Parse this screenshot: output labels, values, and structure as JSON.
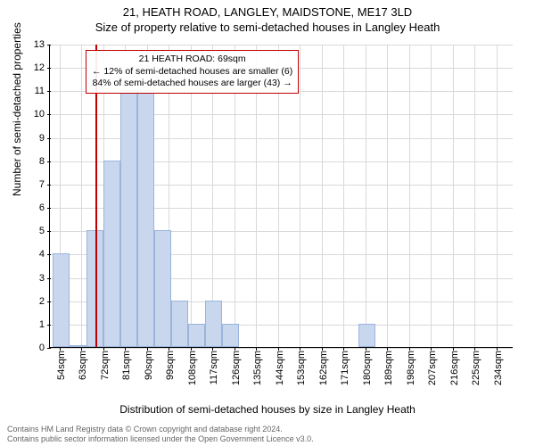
{
  "title": {
    "main": "21, HEATH ROAD, LANGLEY, MAIDSTONE, ME17 3LD",
    "sub": "Size of property relative to semi-detached houses in Langley Heath"
  },
  "chart": {
    "type": "histogram",
    "ylabel": "Number of semi-detached properties",
    "xlabel": "Distribution of semi-detached houses by size in Langley Heath",
    "ylim": [
      0,
      13
    ],
    "yticks": [
      0,
      1,
      2,
      3,
      4,
      5,
      6,
      7,
      8,
      9,
      10,
      11,
      12,
      13
    ],
    "xlim": [
      50,
      241
    ],
    "xticks": [
      54,
      63,
      72,
      81,
      90,
      99,
      108,
      117,
      126,
      135,
      144,
      153,
      162,
      171,
      180,
      189,
      198,
      207,
      216,
      225,
      234
    ],
    "xtick_suffix": "sqm",
    "grid_color": "#d9d9d9",
    "bar_fill": "#c9d7ee",
    "bar_border": "#9bb4dc",
    "bar_width_units": 7,
    "bars": [
      {
        "x": 51,
        "y": 4
      },
      {
        "x": 58,
        "y": 0
      },
      {
        "x": 65,
        "y": 5
      },
      {
        "x": 72,
        "y": 8
      },
      {
        "x": 79,
        "y": 11
      },
      {
        "x": 86,
        "y": 11
      },
      {
        "x": 93,
        "y": 5
      },
      {
        "x": 100,
        "y": 2
      },
      {
        "x": 107,
        "y": 1
      },
      {
        "x": 114,
        "y": 2
      },
      {
        "x": 121,
        "y": 1
      },
      {
        "x": 177,
        "y": 1
      }
    ],
    "marker": {
      "x": 69,
      "color": "#c00000"
    },
    "annotation": {
      "line1": "21 HEATH ROAD: 69sqm",
      "line2": "← 12% of semi-detached houses are smaller (6)",
      "line3": "84% of semi-detached houses are larger (43) →",
      "border_color": "#c00000"
    }
  },
  "footer": {
    "line1": "Contains HM Land Registry data © Crown copyright and database right 2024.",
    "line2": "Contains public sector information licensed under the Open Government Licence v3.0."
  }
}
